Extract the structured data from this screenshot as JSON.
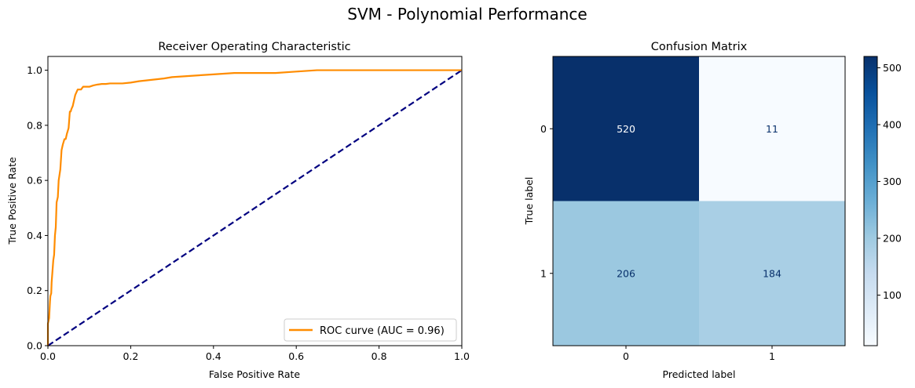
{
  "suptitle": "SVM - Polynomial Performance",
  "chart_data": [
    {
      "type": "line",
      "title": "Receiver Operating Characteristic",
      "xlabel": "False Positive Rate",
      "ylabel": "True Positive Rate",
      "xlim": [
        0.0,
        1.0
      ],
      "ylim": [
        0.0,
        1.05
      ],
      "xticks": [
        "0.0",
        "0.2",
        "0.4",
        "0.6",
        "0.8",
        "1.0"
      ],
      "yticks": [
        "0.0",
        "0.2",
        "0.4",
        "0.6",
        "0.8",
        "1.0"
      ],
      "grid": false,
      "legend_position": "lower-right",
      "series": [
        {
          "name": "ROC curve (AUC = 0.96)",
          "color": "#ff8c00",
          "style": "solid",
          "x": [
            0.0,
            0.0,
            0.003,
            0.005,
            0.006,
            0.008,
            0.009,
            0.011,
            0.013,
            0.015,
            0.017,
            0.019,
            0.021,
            0.024,
            0.026,
            0.028,
            0.03,
            0.033,
            0.036,
            0.038,
            0.04,
            0.043,
            0.046,
            0.048,
            0.05,
            0.053,
            0.055,
            0.057,
            0.06,
            0.063,
            0.066,
            0.069,
            0.072,
            0.075,
            0.08,
            0.085,
            0.09,
            0.095,
            0.1,
            0.11,
            0.12,
            0.13,
            0.14,
            0.15,
            0.18,
            0.2,
            0.22,
            0.25,
            0.28,
            0.3,
            0.35,
            0.4,
            0.45,
            0.5,
            0.55,
            0.6,
            0.65,
            0.7,
            0.75,
            0.8,
            0.9,
            1.0
          ],
          "y": [
            0.0,
            0.08,
            0.1,
            0.16,
            0.18,
            0.19,
            0.23,
            0.27,
            0.31,
            0.33,
            0.4,
            0.43,
            0.52,
            0.54,
            0.6,
            0.62,
            0.64,
            0.71,
            0.73,
            0.74,
            0.75,
            0.75,
            0.77,
            0.78,
            0.79,
            0.85,
            0.85,
            0.86,
            0.87,
            0.89,
            0.91,
            0.92,
            0.93,
            0.93,
            0.93,
            0.94,
            0.94,
            0.94,
            0.94,
            0.945,
            0.948,
            0.95,
            0.95,
            0.952,
            0.952,
            0.955,
            0.96,
            0.965,
            0.97,
            0.975,
            0.98,
            0.985,
            0.99,
            0.99,
            0.99,
            0.995,
            1.0,
            1.0,
            1.0,
            1.0,
            1.0,
            1.0
          ]
        },
        {
          "name": "",
          "color": "#000080",
          "style": "dashed",
          "x": [
            0.0,
            1.0
          ],
          "y": [
            0.0,
            1.0
          ]
        }
      ]
    },
    {
      "type": "heatmap",
      "title": "Confusion Matrix",
      "xlabel": "Predicted label",
      "ylabel": "True label",
      "row_labels": [
        "0",
        "1"
      ],
      "col_labels": [
        "0",
        "1"
      ],
      "values": [
        [
          520,
          11
        ],
        [
          206,
          184
        ]
      ],
      "colormap": "Blues",
      "colorbar": {
        "min": 11,
        "max": 520,
        "ticks": [
          100,
          200,
          300,
          400,
          500
        ]
      }
    }
  ]
}
